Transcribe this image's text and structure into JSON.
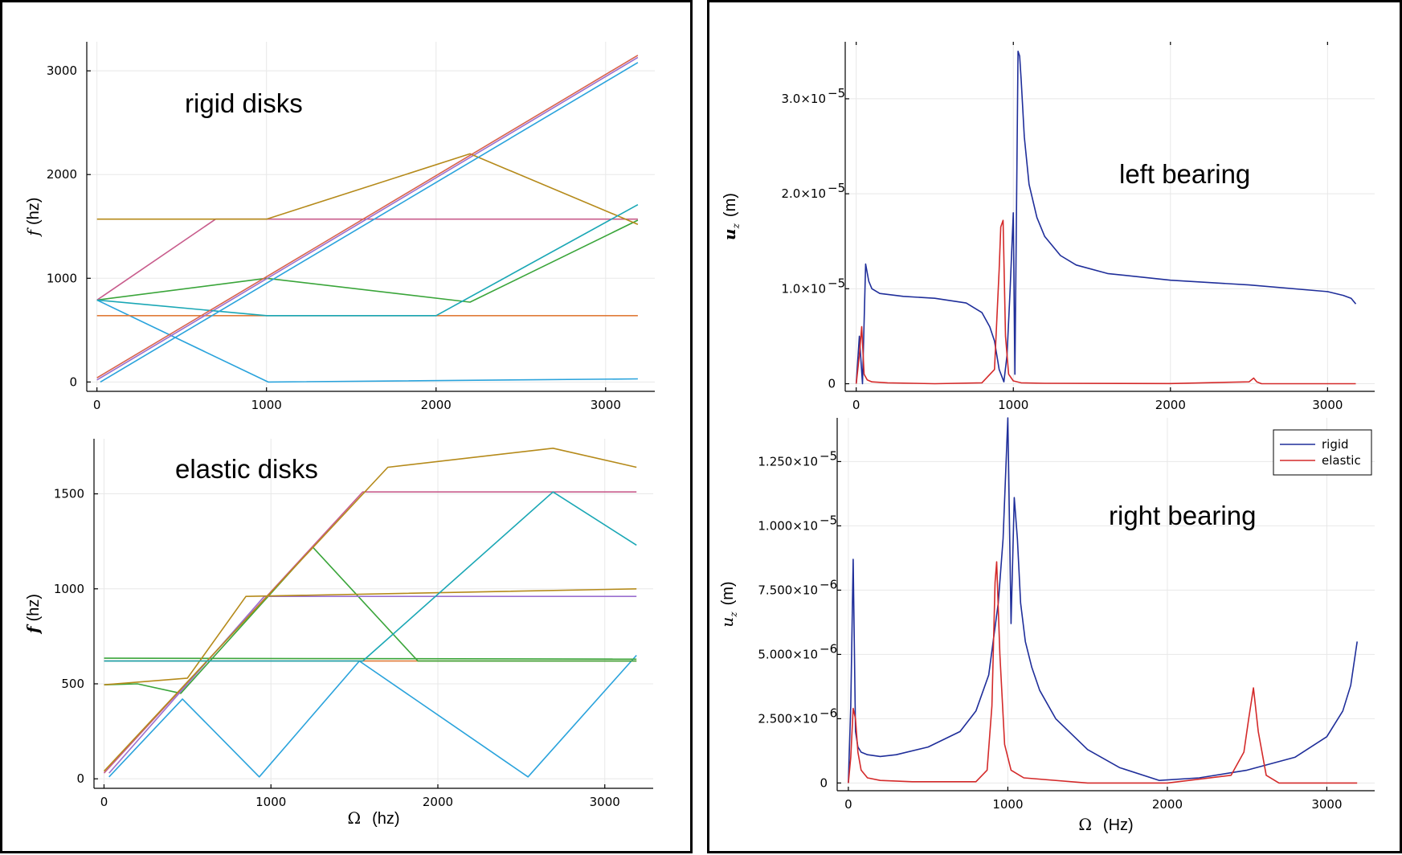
{
  "chart_data": [
    {
      "id": "rigid",
      "type": "line",
      "ylabel_symbol": "f",
      "ylabel_unit": "(hz)",
      "xlabel": "",
      "annotation": "rigid disks",
      "xlim": [
        -60,
        3290
      ],
      "ylim": [
        -90,
        3280
      ],
      "xticks": [
        0,
        1000,
        2000,
        3000
      ],
      "yticks": [
        0,
        1000,
        2000,
        3000
      ],
      "grid": true,
      "series": [
        {
          "color": "#2aa3dc",
          "x": [
            0,
            1010,
            3190
          ],
          "y": [
            790,
            0,
            30
          ]
        },
        {
          "color": "#e07b39",
          "x": [
            0,
            3190
          ],
          "y": [
            640,
            640
          ]
        },
        {
          "color": "#3aa53a",
          "x": [
            0,
            1000,
            2200,
            3190
          ],
          "y": [
            790,
            1000,
            770,
            1560
          ]
        },
        {
          "color": "#c85c8c",
          "x": [
            0,
            700,
            1700,
            3190
          ],
          "y": [
            790,
            1570,
            1570,
            1570
          ]
        },
        {
          "color": "#9b6fcf",
          "x": [
            0,
            3190
          ],
          "y": [
            20,
            3130
          ]
        },
        {
          "color": "#b58a1a",
          "x": [
            0,
            700,
            1000,
            2200,
            3190
          ],
          "y": [
            1570,
            1570,
            1570,
            2200,
            1520
          ]
        },
        {
          "color": "#1aa7b5",
          "x": [
            0,
            1000,
            2000,
            3190
          ],
          "y": [
            790,
            640,
            640,
            1710
          ]
        },
        {
          "color": "#d9634c",
          "x": [
            0,
            3190
          ],
          "y": [
            40,
            3150
          ]
        },
        {
          "color": "#2aa3dc",
          "x": [
            20,
            3190
          ],
          "y": [
            0,
            3080
          ]
        }
      ]
    },
    {
      "id": "elastic",
      "type": "line",
      "ylabel_symbol": "f",
      "ylabel_unit": "(hz)",
      "xlabel_symbol": "Ω",
      "xlabel_unit": "(hz)",
      "annotation": "elastic disks",
      "xlim": [
        -60,
        3290
      ],
      "ylim": [
        -50,
        1790
      ],
      "xticks": [
        0,
        1000,
        2000,
        3000
      ],
      "yticks": [
        0,
        500,
        1000,
        1500
      ],
      "grid": true,
      "series": [
        {
          "color": "#2aa3dc",
          "x": [
            30,
            470,
            930,
            1530,
            2540,
            3190
          ],
          "y": [
            10,
            420,
            10,
            620,
            10,
            650
          ]
        },
        {
          "color": "#e07b39",
          "x": [
            0,
            3190
          ],
          "y": [
            620,
            620
          ]
        },
        {
          "color": "#3aa53a",
          "x": [
            0,
            3190
          ],
          "y": [
            635,
            630
          ]
        },
        {
          "color": "#3aa53a",
          "x": [
            0,
            200,
            460,
            1250,
            1880,
            3190
          ],
          "y": [
            495,
            500,
            450,
            1220,
            620,
            620
          ]
        },
        {
          "color": "#c85c8c",
          "x": [
            0,
            1550,
            3190
          ],
          "y": [
            30,
            1510,
            1510
          ]
        },
        {
          "color": "#9b6fcf",
          "x": [
            30,
            960,
            3190
          ],
          "y": [
            30,
            960,
            960
          ]
        },
        {
          "color": "#b58a1a",
          "x": [
            0,
            500,
            850,
            3190
          ],
          "y": [
            495,
            530,
            960,
            1000
          ]
        },
        {
          "color": "#b58a1a",
          "x": [
            0,
            1700,
            2690,
            3190
          ],
          "y": [
            40,
            1640,
            1740,
            1640
          ]
        },
        {
          "color": "#1aa7b5",
          "x": [
            0,
            1550,
            2690,
            3190
          ],
          "y": [
            620,
            620,
            1510,
            1230
          ]
        }
      ]
    },
    {
      "id": "left-bearing",
      "type": "line",
      "ylabel_symbol": "u",
      "ylabel_sub": "z",
      "ylabel_unit": "(m)",
      "annotation": "left bearing",
      "xlim": [
        -70,
        3300
      ],
      "ylim": [
        -8e-07,
        3.6e-05
      ],
      "xticks": [
        0,
        1000,
        2000,
        3000
      ],
      "yticks": [
        0,
        1e-05,
        2e-05,
        3e-05
      ],
      "ytick_labels": [
        "0",
        "1.0×10",
        "2.0×10",
        "3.0×10"
      ],
      "ytick_exp": [
        "",
        "−5",
        "−5",
        "−5"
      ],
      "grid": true,
      "series": [
        {
          "name": "rigid",
          "color": "#1f2e9a",
          "x": [
            0,
            20,
            40,
            60,
            80,
            100,
            150,
            300,
            500,
            700,
            800,
            850,
            880,
            910,
            940,
            960,
            980,
            1000,
            1010,
            1030,
            1040,
            1050,
            1070,
            1100,
            1150,
            1200,
            1300,
            1400,
            1600,
            2000,
            2500,
            3000,
            3100,
            3150,
            3180
          ],
          "y": [
            0,
            5e-06,
            0,
            1.26e-05,
            1.08e-05,
            1e-05,
            9.5e-06,
            9.2e-06,
            9e-06,
            8.5e-06,
            7.5e-06,
            6e-06,
            4.5e-06,
            1.5e-06,
            2e-07,
            3e-06,
            1e-05,
            1.8e-05,
            1e-06,
            3.5e-05,
            3.45e-05,
            3.2e-05,
            2.6e-05,
            2.1e-05,
            1.75e-05,
            1.55e-05,
            1.35e-05,
            1.25e-05,
            1.16e-05,
            1.09e-05,
            1.04e-05,
            9.7e-06,
            9.3e-06,
            9e-06,
            8.4e-06
          ]
        },
        {
          "name": "elastic",
          "color": "#d42a2a",
          "x": [
            0,
            20,
            35,
            50,
            70,
            100,
            200,
            500,
            800,
            880,
            910,
            920,
            935,
            950,
            970,
            1000,
            1050,
            1200,
            2000,
            2500,
            2530,
            2550,
            2580,
            3000,
            3180
          ],
          "y": [
            0,
            3e-06,
            6e-06,
            1e-06,
            4e-07,
            2e-07,
            1e-07,
            0,
            1e-07,
            1.5e-06,
            1.2e-05,
            1.65e-05,
            1.72e-05,
            5e-06,
            1e-06,
            3e-07,
            1e-07,
            5e-08,
            2e-08,
            2e-07,
            6e-07,
            2e-07,
            0,
            0,
            0
          ]
        }
      ]
    },
    {
      "id": "right-bearing",
      "type": "line",
      "ylabel_symbol": "u",
      "ylabel_sub": "z",
      "ylabel_unit": "(m)",
      "xlabel_symbol": "Ω",
      "xlabel_unit": "(Hz)",
      "annotation": "right bearing",
      "xlim": [
        -70,
        3300
      ],
      "ylim": [
        -3e-07,
        1.42e-05
      ],
      "xticks": [
        0,
        1000,
        2000,
        3000
      ],
      "yticks": [
        0,
        2.5e-06,
        5e-06,
        7.5e-06,
        1e-05,
        1.25e-05
      ],
      "ytick_labels": [
        "0",
        "2.500×10",
        "5.000×10",
        "7.500×10",
        "1.000×10",
        "1.250×10"
      ],
      "ytick_exp": [
        "",
        "−6",
        "−6",
        "−6",
        "−5",
        "−5"
      ],
      "grid": true,
      "legend_position": "top-right",
      "series": [
        {
          "name": "rigid",
          "color": "#1f2e9a",
          "x": [
            0,
            15,
            30,
            45,
            60,
            80,
            120,
            200,
            300,
            500,
            700,
            800,
            880,
            940,
            970,
            1000,
            1020,
            1040,
            1060,
            1080,
            1110,
            1150,
            1200,
            1300,
            1500,
            1700,
            1950,
            2200,
            2500,
            2800,
            3000,
            3100,
            3150,
            3190
          ],
          "y": [
            0,
            3e-06,
            8.7e-06,
            2e-06,
            1.4e-06,
            1.2e-06,
            1.1e-06,
            1.03e-06,
            1.1e-06,
            1.4e-06,
            2e-06,
            2.8e-06,
            4.2e-06,
            7e-06,
            9.5e-06,
            1.42e-05,
            6.2e-06,
            1.11e-05,
            9.5e-06,
            7e-06,
            5.5e-06,
            4.5e-06,
            3.6e-06,
            2.5e-06,
            1.3e-06,
            6e-07,
            1e-07,
            2e-07,
            5e-07,
            1e-06,
            1.8e-06,
            2.8e-06,
            3.8e-06,
            5.5e-06
          ]
        },
        {
          "name": "elastic",
          "color": "#d42a2a",
          "x": [
            0,
            15,
            30,
            45,
            60,
            80,
            120,
            200,
            400,
            800,
            870,
            900,
            920,
            930,
            950,
            980,
            1020,
            1100,
            1500,
            2000,
            2400,
            2480,
            2510,
            2540,
            2570,
            2620,
            2700,
            3000,
            3190
          ],
          "y": [
            0,
            1e-06,
            2.9e-06,
            2.5e-06,
            1.2e-06,
            5e-07,
            2e-07,
            1e-07,
            5e-08,
            5e-08,
            5e-07,
            3e-06,
            7.8e-06,
            8.6e-06,
            5e-06,
            1.5e-06,
            5e-07,
            2e-07,
            0,
            0,
            3e-07,
            1.2e-06,
            2.5e-06,
            3.7e-06,
            2e-06,
            3e-07,
            0,
            0,
            0
          ]
        }
      ]
    }
  ]
}
